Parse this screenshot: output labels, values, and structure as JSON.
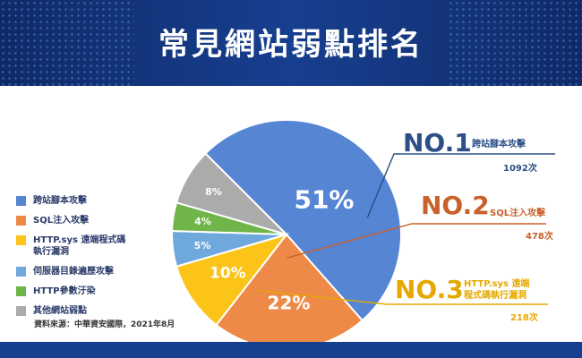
{
  "header": {
    "title": "常見網站弱點排名"
  },
  "chart_data": {
    "type": "pie",
    "title": "常見網站弱點排名",
    "slices": [
      {
        "label": "跨站腳本攻擊",
        "value": 51,
        "display": "51%",
        "color": "#5685d3"
      },
      {
        "label": "SQL注入攻擊",
        "value": 22,
        "display": "22%",
        "color": "#ee8a47"
      },
      {
        "label": "HTTP.sys 遠端程式碼執行漏洞",
        "value": 10,
        "display": "10%",
        "color": "#fcc419"
      },
      {
        "label": "伺服器目錄遍歷攻擊",
        "value": 5,
        "display": "5%",
        "color": "#6ea8dc"
      },
      {
        "label": "HTTP參數汙染",
        "value": 4,
        "display": "4%",
        "color": "#6fb54a"
      },
      {
        "label": "其他網站弱點",
        "value": 8,
        "display": "8%",
        "color": "#ababab"
      }
    ]
  },
  "legend": {
    "items": [
      {
        "label": "跨站腳本攻擊",
        "color": "#5685d3"
      },
      {
        "label": "SQL注入攻擊",
        "color": "#ee8a47"
      },
      {
        "label": "HTTP.sys 遠端程式碼\n執行漏洞",
        "color": "#fcc419"
      },
      {
        "label": "伺服器目錄遍歷攻擊",
        "color": "#6ea8dc"
      },
      {
        "label": "HTTP參數汙染",
        "color": "#6fb54a"
      },
      {
        "label": "其他網站弱點",
        "color": "#ababab"
      }
    ]
  },
  "rankings": [
    {
      "rank": "NO.1",
      "name": "跨站腳本攻擊",
      "count": "1092次",
      "color": "#2b4f86"
    },
    {
      "rank": "NO.2",
      "name": "SQL注入攻擊",
      "count": "478次",
      "color": "#c9612a"
    },
    {
      "rank": "NO.3",
      "name": "HTTP.sys 遠端\n程式碼執行漏洞",
      "count": "218次",
      "color": "#e5a800"
    }
  ],
  "source": "資料來源：中華資安國際，2021年8月"
}
